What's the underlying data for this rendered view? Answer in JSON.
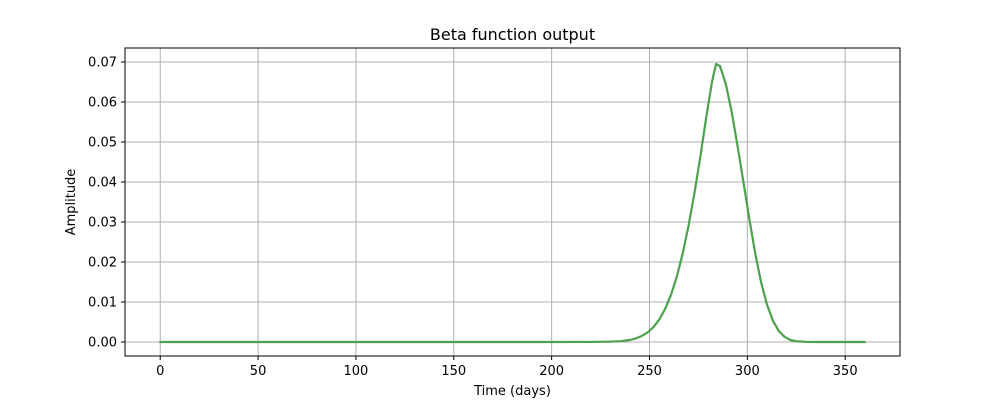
{
  "chart_data": {
    "type": "line",
    "title": "Beta function output",
    "xlabel": "Time (days)",
    "ylabel": "Amplitude",
    "xlim": [
      -18,
      378
    ],
    "ylim": [
      -0.0035,
      0.0735
    ],
    "xticks": [
      0,
      50,
      100,
      150,
      200,
      250,
      300,
      350
    ],
    "yticks": [
      0.0,
      0.01,
      0.02,
      0.03,
      0.04,
      0.05,
      0.06,
      0.07
    ],
    "xtick_labels": [
      "0",
      "50",
      "100",
      "150",
      "200",
      "250",
      "300",
      "350"
    ],
    "ytick_labels": [
      "0.00",
      "0.01",
      "0.02",
      "0.03",
      "0.04",
      "0.05",
      "0.06",
      "0.07"
    ],
    "grid": true,
    "line_color": "#4ca24c",
    "series": [
      {
        "x": [
          0,
          50,
          100,
          150,
          200,
          220,
          230,
          235,
          240,
          243,
          246,
          249,
          252,
          255,
          258,
          261,
          264,
          267,
          270,
          273,
          276,
          279,
          282,
          284,
          286,
          289,
          292,
          295,
          298,
          301,
          304,
          307,
          310,
          313,
          316,
          319,
          322,
          325,
          330,
          335,
          340,
          345,
          350,
          355,
          360
        ],
        "y": [
          0,
          0,
          0,
          0,
          0,
          1e-05,
          0.0001,
          0.0002,
          0.0005,
          0.0009,
          0.0015,
          0.0024,
          0.0037,
          0.0056,
          0.0083,
          0.0118,
          0.0164,
          0.0222,
          0.0292,
          0.0373,
          0.0464,
          0.0562,
          0.0652,
          0.0695,
          0.069,
          0.0645,
          0.0575,
          0.049,
          0.04,
          0.0308,
          0.0222,
          0.015,
          0.0094,
          0.0054,
          0.0028,
          0.0013,
          0.0005,
          0.0002,
          3e-05,
          0,
          0,
          0,
          0,
          0,
          0
        ]
      }
    ]
  }
}
